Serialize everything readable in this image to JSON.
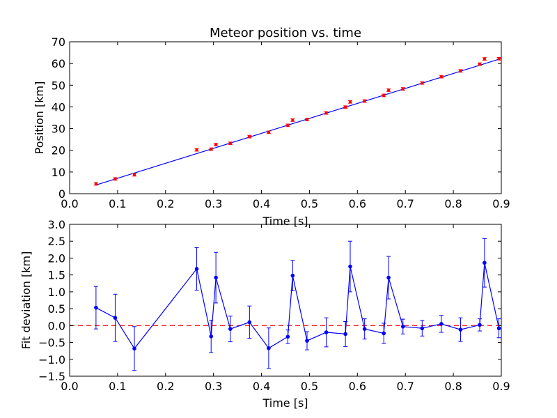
{
  "chart_data": [
    {
      "type": "scatter",
      "title": "Meteor position vs. time",
      "xlabel": "Time [s]",
      "ylabel": "Position [km]",
      "xlim": [
        0.0,
        0.9
      ],
      "ylim": [
        0,
        70
      ],
      "xticks": [
        "0.0",
        "0.1",
        "0.2",
        "0.3",
        "0.4",
        "0.5",
        "0.6",
        "0.7",
        "0.8",
        "0.9"
      ],
      "yticks": [
        "0",
        "10",
        "20",
        "30",
        "40",
        "50",
        "60",
        "70"
      ],
      "grid": false,
      "series": [
        {
          "role": "measurements",
          "color": "#ff0000",
          "x": [
            0.055,
            0.095,
            0.135,
            0.265,
            0.295,
            0.305,
            0.335,
            0.375,
            0.415,
            0.455,
            0.465,
            0.495,
            0.535,
            0.575,
            0.585,
            0.615,
            0.655,
            0.665,
            0.695,
            0.735,
            0.775,
            0.815,
            0.855,
            0.865,
            0.895
          ],
          "y": [
            4.5,
            6.8,
            8.7,
            20.2,
            20.5,
            22.6,
            23.2,
            26.3,
            28.3,
            31.5,
            33.9,
            34.2,
            37.2,
            39.9,
            42.3,
            42.7,
            45.3,
            47.7,
            48.3,
            51.0,
            53.9,
            56.6,
            59.7,
            62.1,
            62.2
          ],
          "yerr": 0.6
        },
        {
          "role": "linear-fit",
          "color": "#0000ff",
          "x": [
            0.055,
            0.9
          ],
          "y": [
            4.0,
            62.3
          ]
        }
      ]
    },
    {
      "type": "line",
      "xlabel": "Time [s]",
      "ylabel": "Fit deviation [km]",
      "xlim": [
        0.0,
        0.9
      ],
      "ylim": [
        -1.5,
        3.0
      ],
      "xticks": [
        "0.0",
        "0.1",
        "0.2",
        "0.3",
        "0.4",
        "0.5",
        "0.6",
        "0.7",
        "0.8",
        "0.9"
      ],
      "yticks": [
        "−1.5",
        "−1.0",
        "−0.5",
        "0.0",
        "0.5",
        "1.0",
        "1.5",
        "2.0",
        "2.5",
        "3.0"
      ],
      "grid": false,
      "reference_line": {
        "y": 0,
        "color": "#ff0000",
        "style": "dashed"
      },
      "series": [
        {
          "role": "deviation",
          "color": "#0000ff",
          "x": [
            0.055,
            0.095,
            0.135,
            0.265,
            0.295,
            0.305,
            0.335,
            0.375,
            0.415,
            0.455,
            0.465,
            0.495,
            0.535,
            0.575,
            0.585,
            0.615,
            0.655,
            0.665,
            0.695,
            0.735,
            0.775,
            0.815,
            0.855,
            0.865,
            0.895
          ],
          "y": [
            0.53,
            0.23,
            -0.68,
            1.68,
            -0.32,
            1.42,
            -0.1,
            0.1,
            -0.67,
            -0.33,
            1.48,
            -0.45,
            -0.2,
            -0.25,
            1.75,
            -0.1,
            -0.23,
            1.42,
            -0.03,
            -0.08,
            0.05,
            -0.12,
            0.02,
            1.86,
            -0.08
          ],
          "yerr": [
            0.63,
            0.7,
            0.65,
            0.63,
            0.48,
            0.75,
            0.38,
            0.48,
            0.6,
            0.2,
            0.45,
            0.27,
            0.43,
            0.37,
            0.75,
            0.3,
            0.3,
            0.63,
            0.22,
            0.23,
            0.25,
            0.35,
            0.18,
            0.72,
            0.28
          ]
        }
      ]
    }
  ]
}
